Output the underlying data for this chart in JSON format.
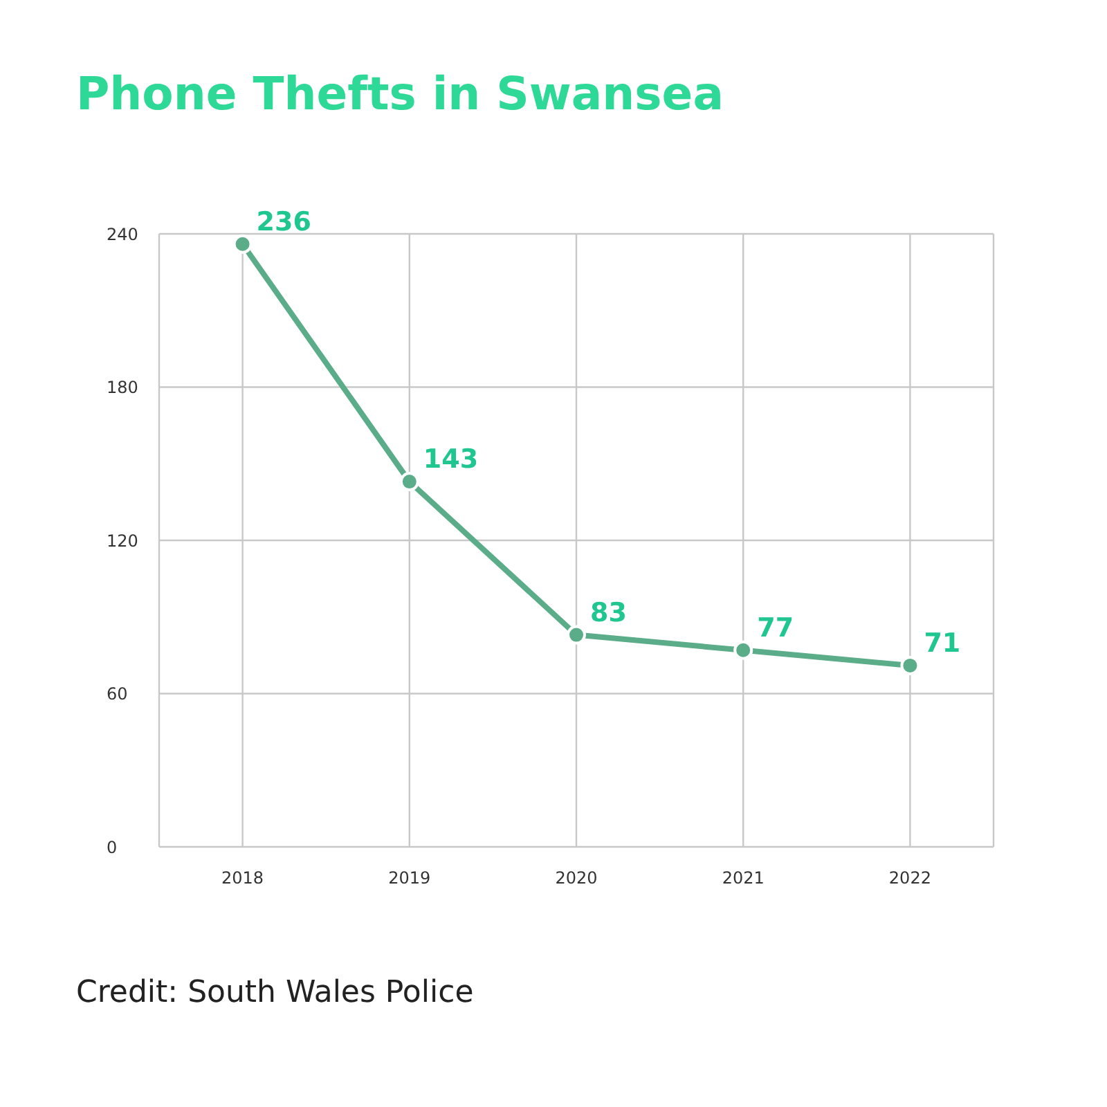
{
  "chart_data": {
    "type": "line",
    "title": "Phone Thefts in Swansea",
    "categories": [
      "2018",
      "2019",
      "2020",
      "2021",
      "2022"
    ],
    "series": [
      {
        "color": "#5aad88",
        "values": [
          236,
          143,
          83,
          77,
          71
        ]
      }
    ],
    "ylim": [
      0,
      240
    ],
    "yticks": [
      0,
      60,
      120,
      180,
      240
    ],
    "grid": true,
    "marker": "circle",
    "data_labels": true,
    "annotations": [
      "Credit: South Wales Police"
    ]
  }
}
